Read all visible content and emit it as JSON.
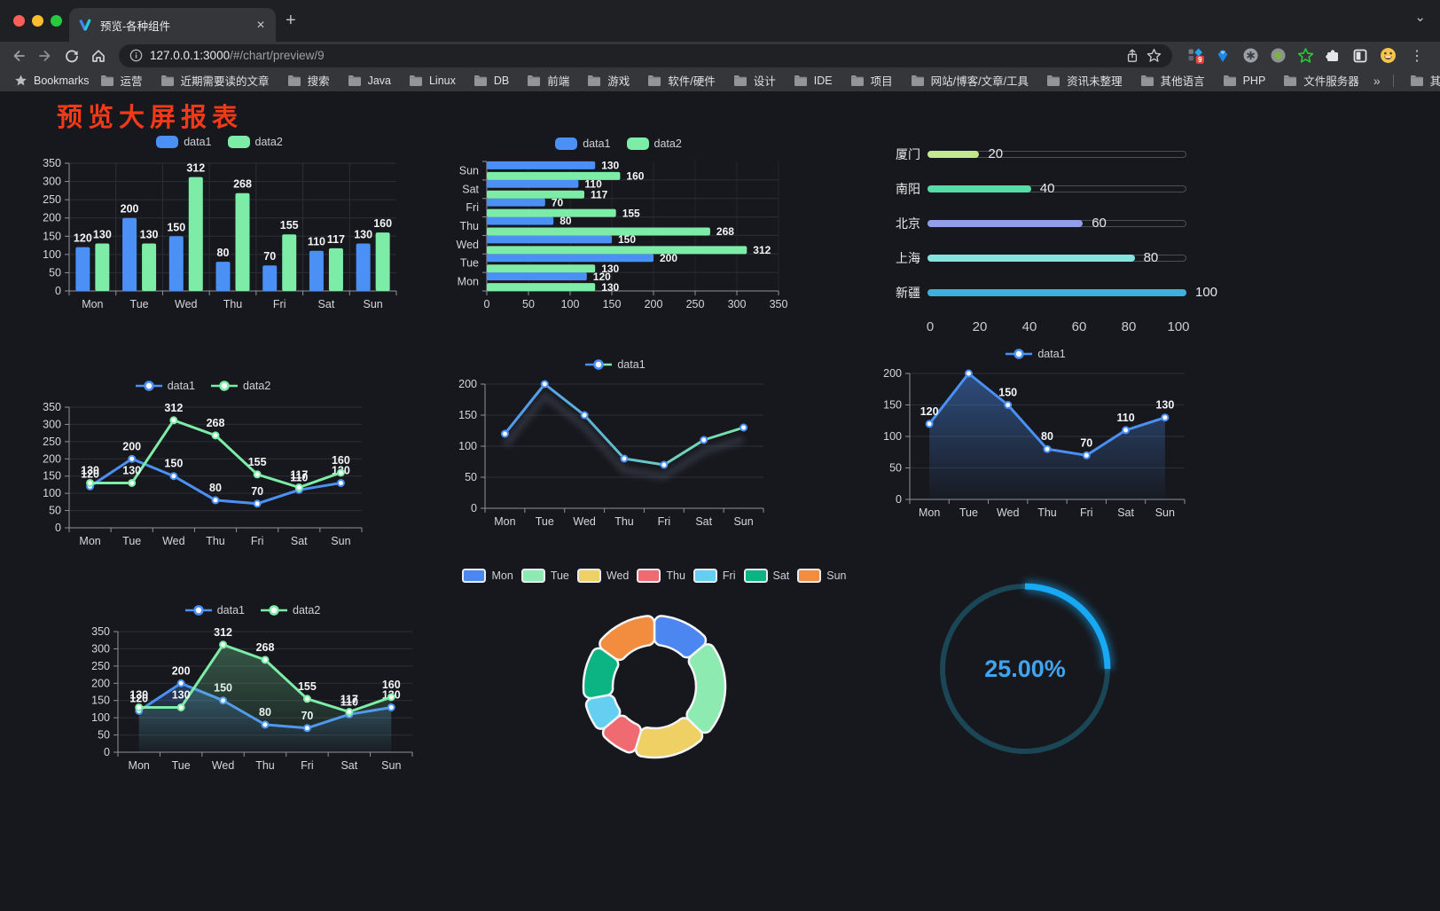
{
  "browser": {
    "tab": {
      "title": "预览-各种组件"
    },
    "url": {
      "host": "127.0.0.1:3000",
      "path": "/#/chart/preview/9"
    },
    "icons": {
      "close": "✕",
      "new_tab": "+",
      "tab_search": "⌄",
      "menu": "⋮"
    },
    "extensions": {
      "badge": "9"
    },
    "bookmarks": {
      "label": "Bookmarks",
      "folders": [
        "运营",
        "近期需要读的文章",
        "搜索",
        "Java",
        "Linux",
        "DB",
        "前端",
        "游戏",
        "软件/硬件",
        "设计",
        "IDE",
        "项目",
        "网站/博客/文章/工具",
        "资讯未整理",
        "其他语言",
        "PHP",
        "文件服务器"
      ],
      "overflow": "»",
      "other": "其他书签"
    }
  },
  "page": {
    "title": "预览大屏报表",
    "title_color": "#f23a19",
    "background": "#17181d"
  },
  "chart_data": [
    {
      "id": "bar-grouped",
      "type": "bar",
      "categories": [
        "Mon",
        "Tue",
        "Wed",
        "Thu",
        "Fri",
        "Sat",
        "Sun"
      ],
      "series": [
        {
          "name": "data1",
          "color": "#4a90f5",
          "values": [
            120,
            200,
            150,
            80,
            70,
            110,
            130
          ]
        },
        {
          "name": "data2",
          "color": "#7deca6",
          "values": [
            130,
            130,
            312,
            268,
            155,
            117,
            160
          ]
        }
      ],
      "ylim": [
        0,
        350
      ],
      "ystep": 50,
      "vsplit": true,
      "value_labels": true,
      "legend_position": "top",
      "grid": true
    },
    {
      "id": "bar-horizontal",
      "type": "bar-horizontal",
      "categories": [
        "Mon",
        "Tue",
        "Wed",
        "Thu",
        "Fri",
        "Sat",
        "Sun"
      ],
      "series": [
        {
          "name": "data1",
          "color": "#4a90f5",
          "values": [
            120,
            200,
            150,
            80,
            70,
            110,
            130
          ]
        },
        {
          "name": "data2",
          "color": "#7deca6",
          "values": [
            130,
            130,
            312,
            268,
            155,
            117,
            160
          ]
        }
      ],
      "xlim": [
        0,
        350
      ],
      "xstep": 50,
      "value_labels": true,
      "legend_position": "top",
      "grid": true
    },
    {
      "id": "progress-bars",
      "type": "progress",
      "max": 100,
      "ticks": [
        0,
        20,
        40,
        60,
        80,
        100
      ],
      "items": [
        {
          "label": "厦门",
          "value": 20,
          "color": "#c3e88d"
        },
        {
          "label": "南阳",
          "value": 40,
          "color": "#58dba6"
        },
        {
          "label": "北京",
          "value": 60,
          "color": "#939ee8"
        },
        {
          "label": "上海",
          "value": 80,
          "color": "#85e2de"
        },
        {
          "label": "新疆",
          "value": 100,
          "color": "#3fafe0"
        }
      ]
    },
    {
      "id": "line-two-series",
      "type": "line",
      "categories": [
        "Mon",
        "Tue",
        "Wed",
        "Thu",
        "Fri",
        "Sat",
        "Sun"
      ],
      "series": [
        {
          "name": "data1",
          "color": "#4a90f5",
          "values": [
            120,
            200,
            150,
            80,
            70,
            110,
            130
          ]
        },
        {
          "name": "data2",
          "color": "#7deca6",
          "values": [
            130,
            130,
            312,
            268,
            155,
            117,
            160
          ]
        }
      ],
      "ylim": [
        0,
        350
      ],
      "ystep": 50,
      "value_labels": true,
      "legend_position": "top",
      "grid": true
    },
    {
      "id": "line-gradient",
      "type": "line",
      "categories": [
        "Mon",
        "Tue",
        "Wed",
        "Thu",
        "Fri",
        "Sat",
        "Sun"
      ],
      "series": [
        {
          "name": "data1",
          "color": [
            "#4a90f5",
            "#7deca6"
          ],
          "shadow": true,
          "values": [
            120,
            200,
            150,
            80,
            70,
            110,
            130
          ]
        }
      ],
      "ylim": [
        0,
        200
      ],
      "ystep": 50,
      "value_labels": false,
      "legend_position": "top",
      "grid": true
    },
    {
      "id": "line-area",
      "type": "line",
      "categories": [
        "Mon",
        "Tue",
        "Wed",
        "Thu",
        "Fri",
        "Sat",
        "Sun"
      ],
      "series": [
        {
          "name": "data1",
          "color": "#4a90f5",
          "area": true,
          "area_opacity": 0.45,
          "values": [
            120,
            200,
            150,
            80,
            70,
            110,
            130
          ]
        }
      ],
      "ylim": [
        0,
        200
      ],
      "ystep": 50,
      "value_labels": true,
      "legend_position": "top",
      "grid": true
    },
    {
      "id": "area-two-series",
      "type": "line",
      "categories": [
        "Mon",
        "Tue",
        "Wed",
        "Thu",
        "Fri",
        "Sat",
        "Sun"
      ],
      "series": [
        {
          "name": "data1",
          "color": "#4a90f5",
          "area": true,
          "area_opacity": 0.3,
          "values": [
            120,
            200,
            150,
            80,
            70,
            110,
            130
          ]
        },
        {
          "name": "data2",
          "color": "#7deca6",
          "area": true,
          "area_opacity": 0.3,
          "values": [
            130,
            130,
            312,
            268,
            155,
            117,
            160
          ]
        }
      ],
      "ylim": [
        0,
        350
      ],
      "ystep": 50,
      "value_labels": true,
      "legend_position": "top",
      "grid": true
    },
    {
      "id": "donut",
      "type": "pie",
      "legend_position": "top",
      "items": [
        {
          "label": "Mon",
          "value": 120,
          "color": "#4c86f0"
        },
        {
          "label": "Tue",
          "value": 200,
          "color": "#8deab0"
        },
        {
          "label": "Wed",
          "value": 150,
          "color": "#eed064"
        },
        {
          "label": "Thu",
          "value": 80,
          "color": "#ef6a71"
        },
        {
          "label": "Fri",
          "value": 70,
          "color": "#65cff2"
        },
        {
          "label": "Sat",
          "value": 110,
          "color": "#0cb383"
        },
        {
          "label": "Sun",
          "value": 130,
          "color": "#f28d40"
        }
      ]
    },
    {
      "id": "gauge-progress",
      "type": "gauge",
      "value": 25,
      "max": 100,
      "label": "25.00%",
      "color": "#18a9f4",
      "track_color": "#1b4656",
      "text_color": "#41a4ee"
    }
  ]
}
